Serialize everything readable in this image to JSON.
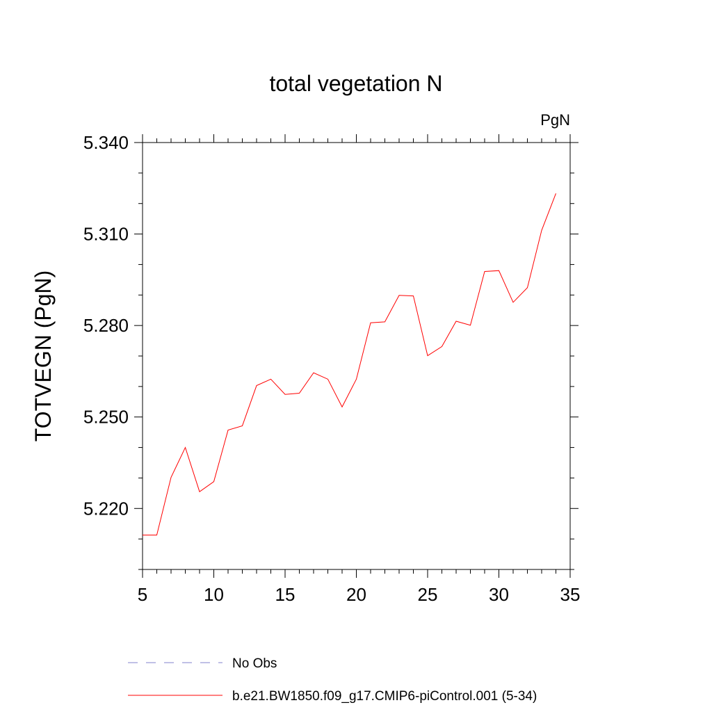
{
  "chart_data": {
    "type": "line",
    "title": "total vegetation N",
    "units_label": "PgN",
    "xlabel": "",
    "ylabel": "TOTVEGN  (PgN)",
    "xlim": [
      5,
      35
    ],
    "ylim": [
      5.2,
      5.34
    ],
    "xticks": [
      5,
      10,
      15,
      20,
      25,
      30,
      35
    ],
    "xtick_labels": [
      "5",
      "10",
      "15",
      "20",
      "25",
      "30",
      "35"
    ],
    "yticks": [
      5.22,
      5.25,
      5.28,
      5.31,
      5.34
    ],
    "ytick_labels": [
      "5.220",
      "5.250",
      "5.280",
      "5.310",
      "5.340"
    ],
    "grid": false,
    "series": [
      {
        "name": "b.e21.BW1850.f09_g17.CMIP6-piControl.001 (5-34)",
        "color": "#ff0000",
        "style": "solid",
        "x": [
          5,
          6,
          7,
          8,
          9,
          10,
          11,
          12,
          13,
          14,
          15,
          16,
          17,
          18,
          19,
          20,
          21,
          22,
          23,
          24,
          25,
          26,
          27,
          28,
          29,
          30,
          31,
          32,
          33,
          34
        ],
        "values": [
          5.2113,
          5.2113,
          5.2302,
          5.24,
          5.2255,
          5.2288,
          5.2457,
          5.2471,
          5.2603,
          5.2624,
          5.2574,
          5.2578,
          5.2645,
          5.2624,
          5.2533,
          5.2624,
          5.2809,
          5.2812,
          5.2899,
          5.2897,
          5.2701,
          5.2731,
          5.2814,
          5.2801,
          5.2977,
          5.298,
          5.2876,
          5.2924,
          5.3112,
          5.3233
        ]
      }
    ],
    "legend": {
      "placement": "bottom",
      "entries": [
        {
          "label": "No Obs",
          "color": "#8080cc",
          "style": "dashed"
        },
        {
          "label": "b.e21.BW1850.f09_g17.CMIP6-piControl.001 (5-34)",
          "color": "#ff0000",
          "style": "solid"
        }
      ]
    }
  }
}
